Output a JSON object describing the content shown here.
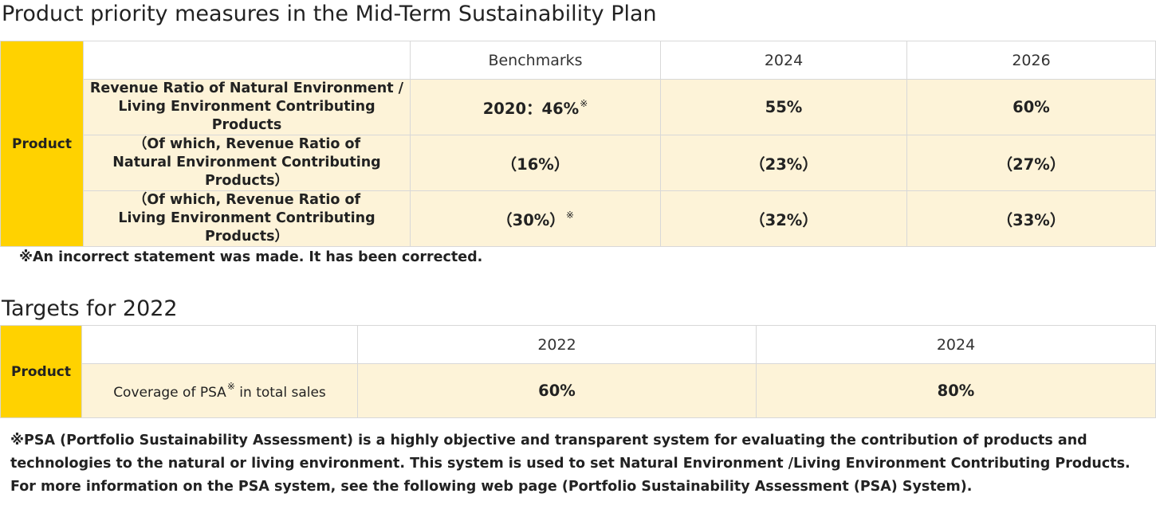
{
  "table1": {
    "title": "Product priority measures in the Mid-Term Sustainability Plan",
    "side_label": "Product",
    "headers": [
      "Benchmarks",
      "2024",
      "2026"
    ],
    "rows": [
      {
        "label_line1": "Revenue Ratio of Natural Environment /",
        "label_line2": "Living Environment Contributing Products",
        "benchmark": "2020：46%",
        "benchmark_mark": "※",
        "y2024": "55%",
        "y2026": "60%"
      },
      {
        "label_line1": "（Of which, Revenue Ratio of",
        "label_line2": "Natural Environment Contributing Products）",
        "benchmark": "（16%）",
        "y2024": "（23%）",
        "y2026": "（27%）"
      },
      {
        "label_line1": "（Of which, Revenue Ratio of",
        "label_line2": "Living Environment Contributing Products）",
        "benchmark": "（30%）",
        "benchmark_mark": "※",
        "y2024": "（32%）",
        "y2026": "（33%）"
      }
    ],
    "note": "※An incorrect statement was made. It has been corrected."
  },
  "table2": {
    "title": "Targets for 2022",
    "side_label": "Product",
    "headers": [
      "2022",
      "2024"
    ],
    "row": {
      "label_before": "Coverage of PSA",
      "label_mark": "※",
      "label_after": " in total sales",
      "y2022": "60%",
      "y2024": "80%"
    },
    "note_lines": [
      "※PSA (Portfolio Sustainability Assessment) is a highly objective and transparent system for evaluating the contribution of products and",
      "technologies to the natural or living environment. This system is used to set Natural Environment /Living Environment Contributing Products.",
      "For more information on the PSA system, see the following web page (Portfolio Sustainability Assessment (PSA) System)."
    ]
  },
  "colors": {
    "side_cell": "#ffd200",
    "data_cell": "#fdf3d8",
    "border": "#d8d8d8",
    "text": "#222222"
  }
}
